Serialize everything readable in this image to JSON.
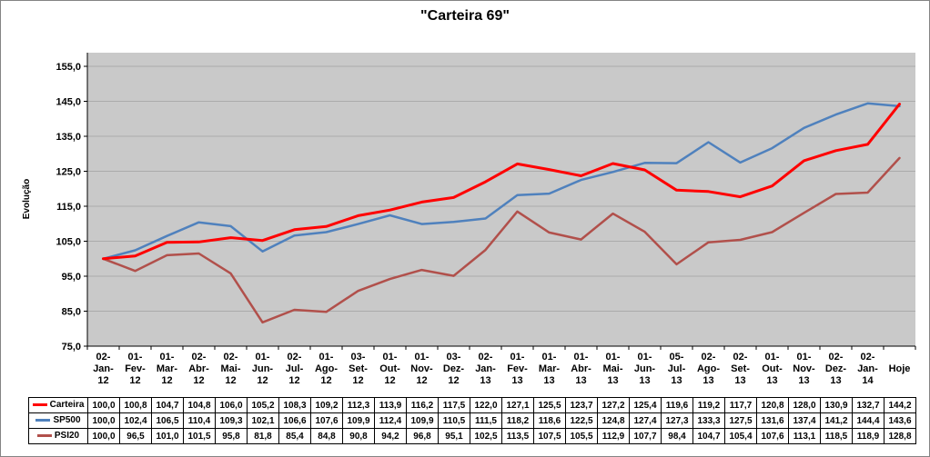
{
  "chart": {
    "title": "\"Carteira 69\"",
    "y_axis_title": "Evolução",
    "y_ticks": [
      75,
      85,
      95,
      105,
      115,
      125,
      135,
      145,
      155
    ],
    "plot_background": "#C9C9C9",
    "gridline_color": "#ABABAB",
    "axis_color": "#000000"
  },
  "chart_data": {
    "type": "line",
    "title": "\"Carteira 69\"",
    "xlabel": "",
    "ylabel": "Evolução",
    "ylim": [
      75,
      155
    ],
    "y_major_unit": 10,
    "grid": true,
    "legend_position": "data-table-left",
    "number_format": "one decimal, comma separator",
    "categories": [
      "02-Jan-12",
      "01-Fev-12",
      "01-Mar-12",
      "02-Abr-12",
      "02-Mai-12",
      "01-Jun-12",
      "02-Jul-12",
      "01-Ago-12",
      "03-Set-12",
      "01-Out-12",
      "01-Nov-12",
      "03-Dez-12",
      "02-Jan-13",
      "01-Fev-13",
      "01-Mar-13",
      "01-Abr-13",
      "01-Mai-13",
      "01-Jun-13",
      "05-Jul-13",
      "02-Ago-13",
      "02-Set-13",
      "01-Out-13",
      "01-Nov-13",
      "02-Dez-13",
      "02-Jan-14",
      "Hoje"
    ],
    "series": [
      {
        "name": "Carteira",
        "color": "#FF0000",
        "width": 3,
        "values": [
          100.0,
          100.8,
          104.7,
          104.8,
          106.0,
          105.2,
          108.3,
          109.2,
          112.3,
          113.9,
          116.2,
          117.5,
          122.0,
          127.1,
          125.5,
          123.7,
          127.2,
          125.4,
          119.6,
          119.2,
          117.7,
          120.8,
          128.0,
          130.9,
          132.7,
          144.2
        ]
      },
      {
        "name": "SP500",
        "color": "#4F81BD",
        "width": 2.5,
        "values": [
          100.0,
          102.4,
          106.5,
          110.4,
          109.3,
          102.1,
          106.6,
          107.6,
          109.9,
          112.4,
          109.9,
          110.5,
          111.5,
          118.2,
          118.6,
          122.5,
          124.8,
          127.4,
          127.3,
          133.3,
          127.5,
          131.6,
          137.4,
          141.2,
          144.4,
          143.6
        ]
      },
      {
        "name": "PSI20",
        "color": "#B1504B",
        "width": 2.5,
        "values": [
          100.0,
          96.5,
          101.0,
          101.5,
          95.8,
          81.8,
          85.4,
          84.8,
          90.8,
          94.2,
          96.8,
          95.1,
          102.5,
          113.5,
          107.5,
          105.5,
          112.9,
          107.7,
          98.4,
          104.7,
          105.4,
          107.6,
          113.1,
          118.5,
          118.9,
          128.8
        ]
      }
    ]
  }
}
